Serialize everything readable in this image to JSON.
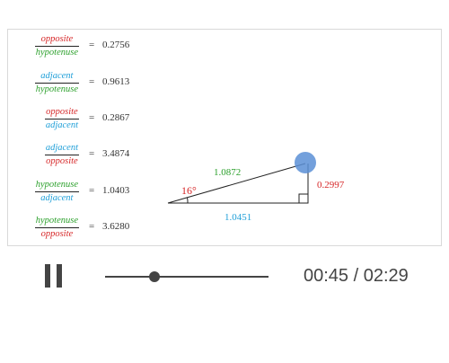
{
  "ratios": [
    {
      "numerator": "opposite",
      "denominator": "hypotenuse",
      "value": "0.2756"
    },
    {
      "numerator": "adjacent",
      "denominator": "hypotenuse",
      "value": "0.9613"
    },
    {
      "numerator": "opposite",
      "denominator": "adjacent",
      "value": "0.2867"
    },
    {
      "numerator": "adjacent",
      "denominator": "opposite",
      "value": "3.4874"
    },
    {
      "numerator": "hypotenuse",
      "denominator": "adjacent",
      "value": "1.0403"
    },
    {
      "numerator": "hypotenuse",
      "denominator": "opposite",
      "value": "3.6280"
    }
  ],
  "equals_sign": "=",
  "triangle": {
    "angle_label": "16°",
    "hypotenuse_label": "1.0872",
    "adjacent_label": "1.0451",
    "opposite_label": "0.2997"
  },
  "player": {
    "current_time": "00:45",
    "separator": "/",
    "total_time": "02:29",
    "progress": 0.3
  },
  "colors": {
    "opposite": "#d62728",
    "adjacent": "#1f9fd8",
    "hypotenuse": "#2ca02c",
    "handle": "#5b8fd6",
    "controls": "#444444"
  }
}
